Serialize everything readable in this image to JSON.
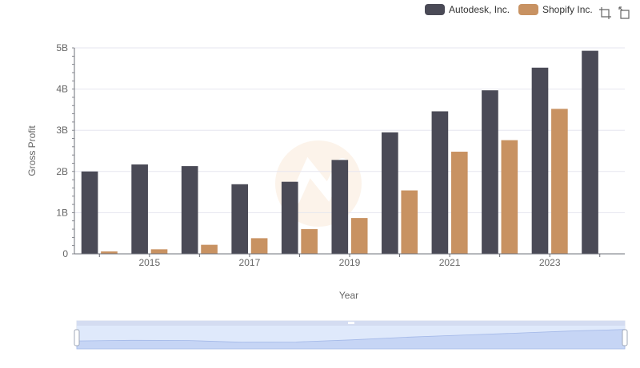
{
  "chart_data": {
    "type": "bar",
    "xlabel": "Year",
    "ylabel": "Gross Profit",
    "x": [
      2014,
      2015,
      2016,
      2017,
      2018,
      2019,
      2020,
      2021,
      2022,
      2023,
      2024
    ],
    "x_tick_labels": [
      "2015",
      "2017",
      "2019",
      "2021",
      "2023"
    ],
    "y_tick_labels": [
      "0",
      "1B",
      "2B",
      "3B",
      "4B",
      "5B"
    ],
    "ylim": [
      0,
      5000000000
    ],
    "grid": true,
    "legend_position": "top-right",
    "series": [
      {
        "name": "Autodesk, Inc.",
        "color": "#4a4a56",
        "values": [
          2000000000,
          2170000000,
          2130000000,
          1690000000,
          1750000000,
          2280000000,
          2950000000,
          3460000000,
          3970000000,
          4520000000,
          4930000000
        ]
      },
      {
        "name": "Shopify Inc.",
        "color": "#c89262",
        "values": [
          60000000,
          110000000,
          220000000,
          380000000,
          600000000,
          870000000,
          1540000000,
          2480000000,
          2760000000,
          3520000000,
          null
        ]
      }
    ]
  },
  "toolbox": {
    "icons": [
      "zoom-icon",
      "restore-icon"
    ]
  },
  "slider": {
    "range": [
      0,
      1
    ]
  }
}
